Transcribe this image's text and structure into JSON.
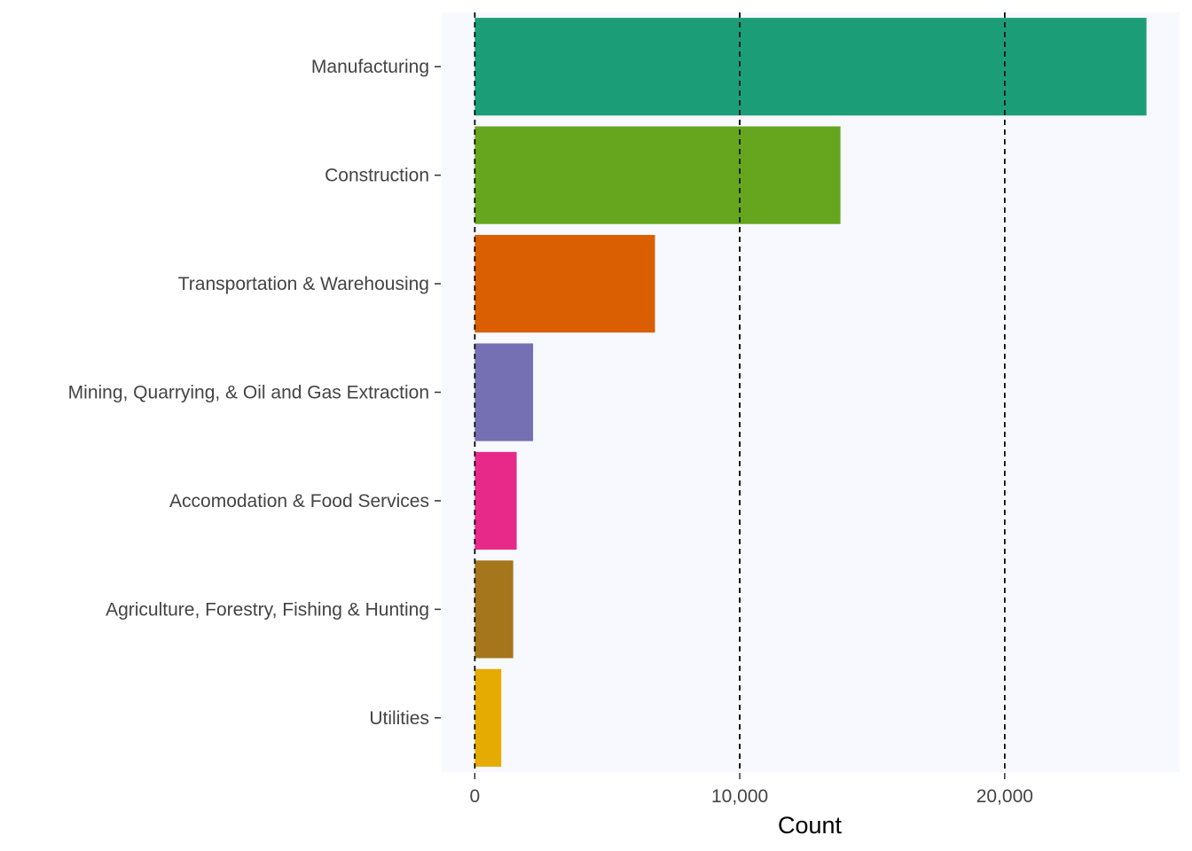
{
  "chart_data": {
    "type": "bar",
    "orientation": "horizontal",
    "categories": [
      "Manufacturing",
      "Construction",
      "Transportation & Warehousing",
      "Mining, Quarrying, & Oil and Gas Extraction",
      "Accomodation & Food Services",
      "Agriculture, Forestry, Fishing & Hunting",
      "Utilities"
    ],
    "values": [
      25350,
      13800,
      6800,
      2200,
      1580,
      1450,
      1000
    ],
    "colors": [
      "#1b9e77",
      "#66a61e",
      "#d95f02",
      "#7570b3",
      "#e7298a",
      "#a6761d",
      "#e6ab02"
    ],
    "title": "",
    "xlabel": "Count",
    "ylabel": "",
    "xlim": [
      -1250,
      26600
    ],
    "xticks": [
      0,
      10000,
      20000
    ],
    "xtick_labels": [
      "0",
      "10,000",
      "20,000"
    ],
    "grid": "vertical dashed lines at x ticks",
    "legend": "none",
    "panel_background": "#f8f9fe"
  }
}
